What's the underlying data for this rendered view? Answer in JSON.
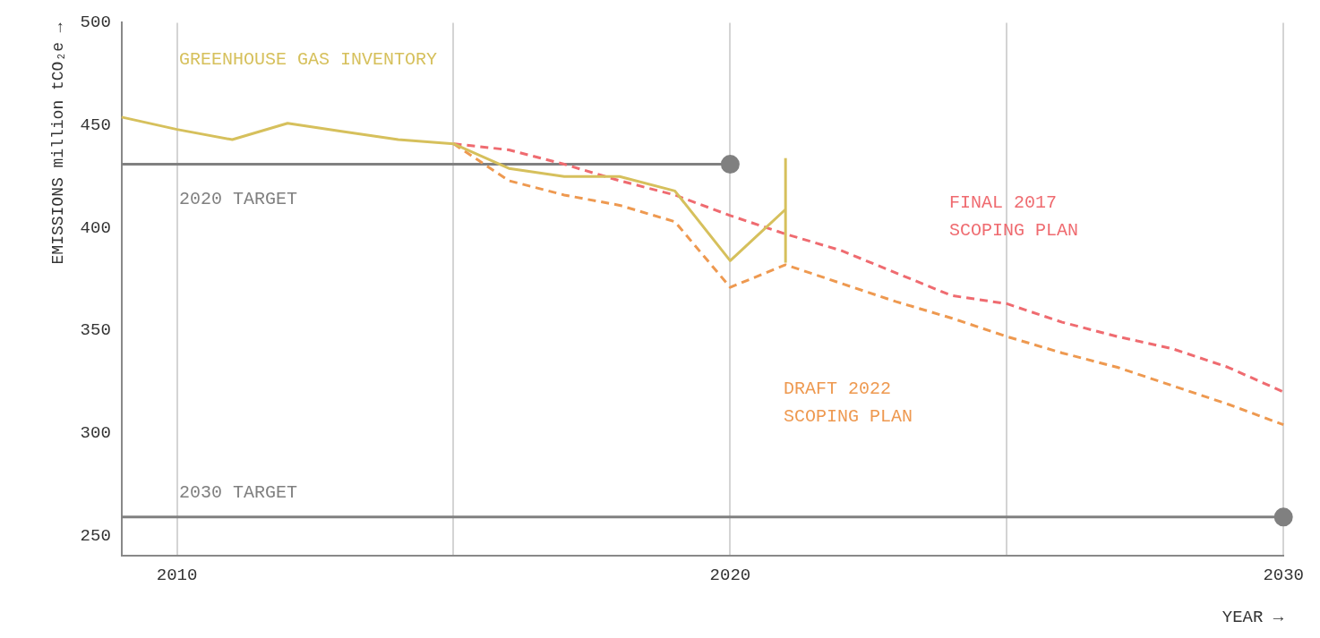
{
  "chart_data": {
    "type": "line",
    "xlabel": "YEAR →",
    "ylabel": "EMISSIONS million tCO₂e →",
    "xlim": [
      2009,
      2030
    ],
    "xticks": [
      2010,
      {
        "value": 2015,
        "label": null
      },
      2020,
      {
        "value": 2025,
        "label": null
      },
      2030
    ],
    "ylim": [
      240,
      500
    ],
    "yticks": [
      250,
      300,
      350,
      400,
      450,
      500
    ],
    "grid": "x",
    "legend": false,
    "series": [
      {
        "name": "GREENHOUSE GAS INVENTORY",
        "color": "#d6c05c",
        "line_style": "solid",
        "marker": "none",
        "x": [
          2009,
          2010,
          2011,
          2012,
          2013,
          2014,
          2015,
          2016,
          2017,
          2018,
          2019,
          2020,
          2021
        ],
        "values": [
          454,
          448,
          443,
          451,
          447,
          443,
          441,
          429,
          425,
          425,
          418,
          384,
          409
        ],
        "errors": [
          null,
          null,
          null,
          null,
          null,
          null,
          null,
          null,
          null,
          null,
          null,
          null,
          [
            383,
            434
          ]
        ]
      },
      {
        "name": "FINAL 2017 SCOPING PLAN",
        "color": "#ef6b70",
        "line_style": "dashed",
        "marker": "none",
        "x": [
          2015,
          2016,
          2017,
          2018,
          2019,
          2020,
          2021,
          2022,
          2023,
          2024,
          2025,
          2026,
          2027,
          2028,
          2029,
          2030
        ],
        "values": [
          441,
          438,
          431,
          423,
          416,
          406,
          397,
          389,
          378,
          367,
          363,
          354,
          347,
          341,
          332,
          320
        ]
      },
      {
        "name": "DRAFT 2022 SCOPING PLAN",
        "color": "#ee9950",
        "line_style": "dashed",
        "marker": "none",
        "x": [
          2015,
          2016,
          2017,
          2018,
          2019,
          2020,
          2021,
          2022,
          2023,
          2024,
          2025,
          2026,
          2027,
          2028,
          2029,
          2030
        ],
        "values": [
          441,
          423,
          416,
          411,
          403,
          371,
          382,
          373,
          364,
          356,
          347,
          339,
          332,
          323,
          314,
          304
        ]
      },
      {
        "name": "2020 TARGET",
        "color": "#808080",
        "line_style": "solid",
        "marker": "circle",
        "x": [
          2009,
          2020
        ],
        "values": [
          431,
          431
        ]
      },
      {
        "name": "2030 TARGET",
        "color": "#808080",
        "line_style": "solid",
        "marker": "circle",
        "x": [
          2009,
          2030
        ],
        "values": [
          259,
          259
        ]
      }
    ]
  }
}
